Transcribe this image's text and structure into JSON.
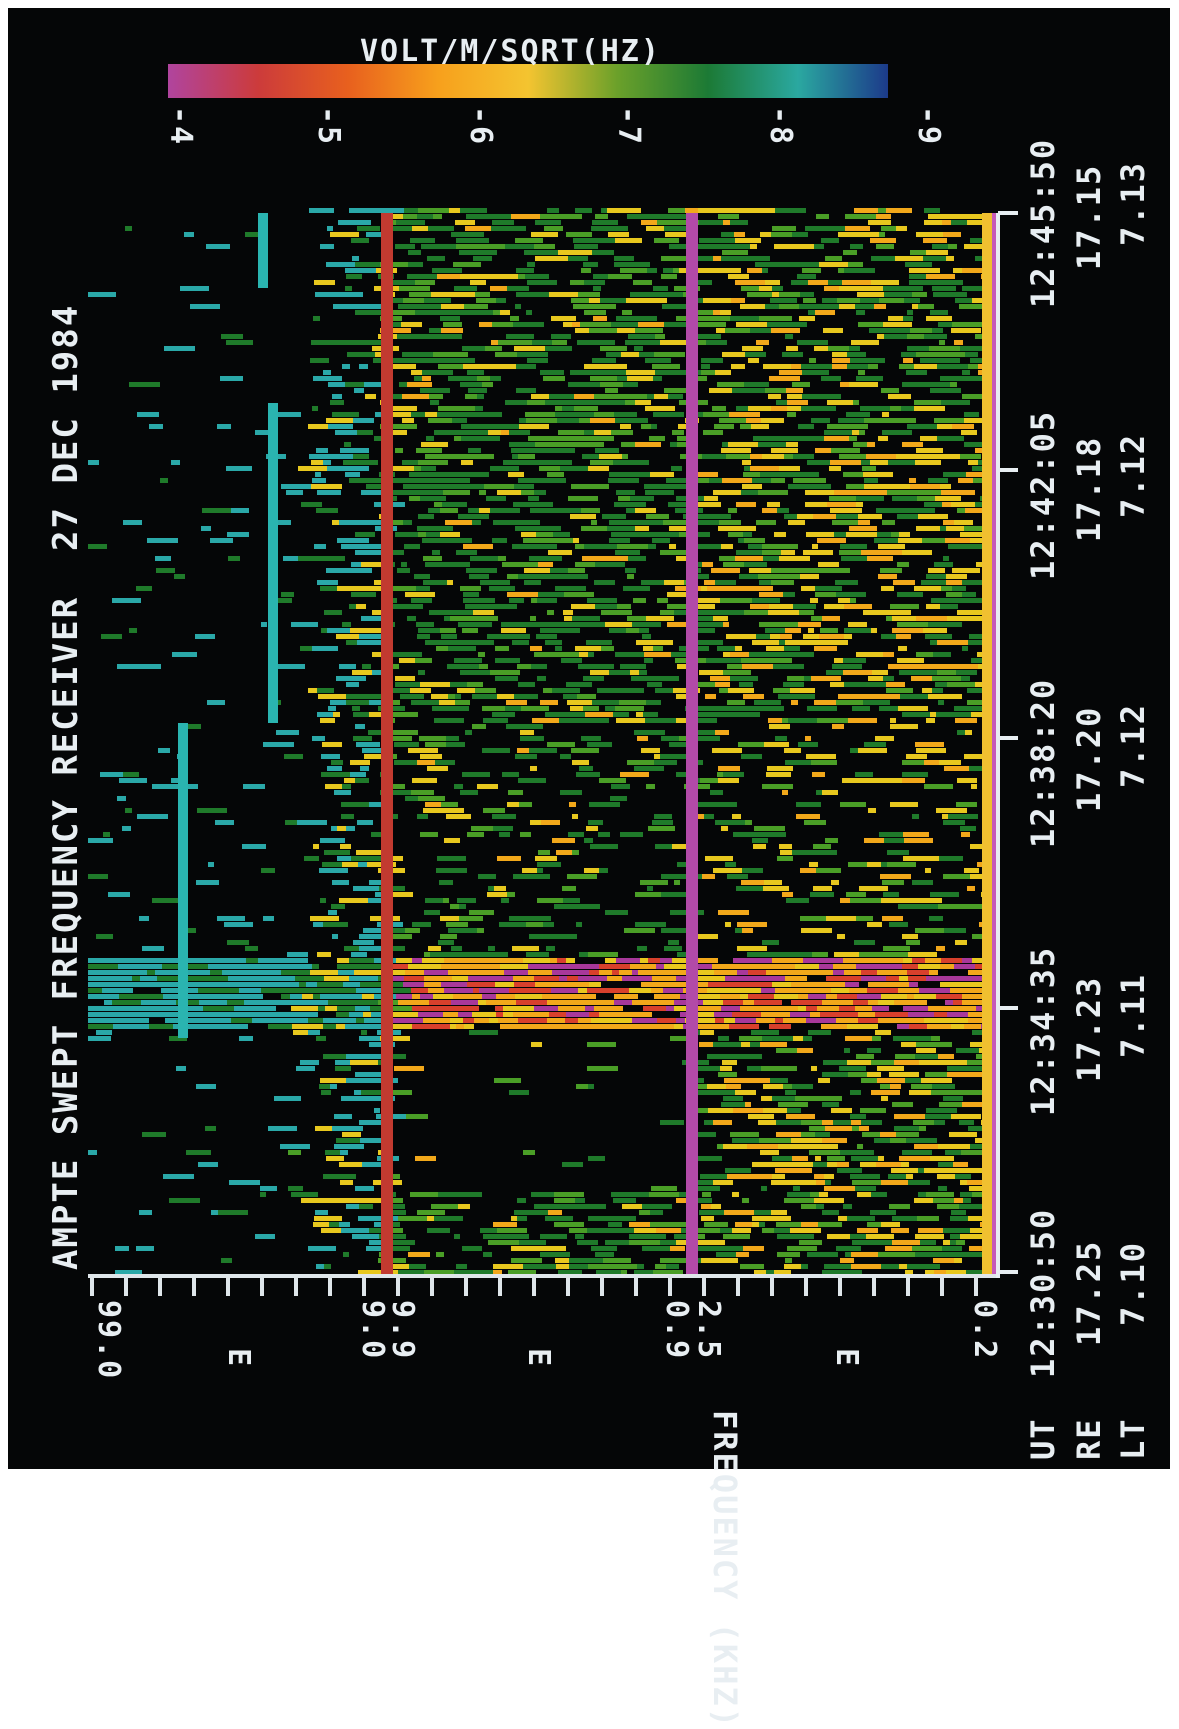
{
  "title": "AMPTE SWEPT FREQUENCY RECEIVER",
  "date": "27 DEC 1984",
  "colorbar": {
    "label": "VOLT/M/SQRT(HZ)",
    "ticks": [
      "-4",
      "-5",
      "-6",
      "-7",
      "-8",
      "-9"
    ],
    "colors": [
      "#b0449e",
      "#cc3b3b",
      "#e8601e",
      "#f7a01c",
      "#f4c430",
      "#6aa02a",
      "#1c7a35",
      "#2aa8a0",
      "#1c3a8a"
    ]
  },
  "row_labels": [
    "UT",
    "RE",
    "LT"
  ],
  "chart_data": {
    "type": "heatmap",
    "xlabel": "",
    "ylabel": "FREQUENCY (KHZ)",
    "time_ticks": [
      {
        "ut": "12:30:50",
        "re": "17.25",
        "lt": "7.10"
      },
      {
        "ut": "12:34:35",
        "re": "17.23",
        "lt": "7.11"
      },
      {
        "ut": "12:38:20",
        "re": "17.20",
        "lt": "7.12"
      },
      {
        "ut": "12:42:05",
        "re": "17.18",
        "lt": "7.12"
      },
      {
        "ut": "12:45:50",
        "re": "17.15",
        "lt": "7.13"
      }
    ],
    "frequency_bands": [
      {
        "top": "99.0",
        "mid": "E",
        "bottom": "9.0"
      },
      {
        "top": "9.9",
        "mid": "E",
        "bottom": "0.9"
      },
      {
        "top": "2.5",
        "mid": "E",
        "bottom": "0.2"
      }
    ],
    "colorbar_range": [
      -4,
      -9
    ],
    "band_separator_colors": [
      "#c23a30",
      "#b24aa8",
      "#f0c030"
    ]
  }
}
